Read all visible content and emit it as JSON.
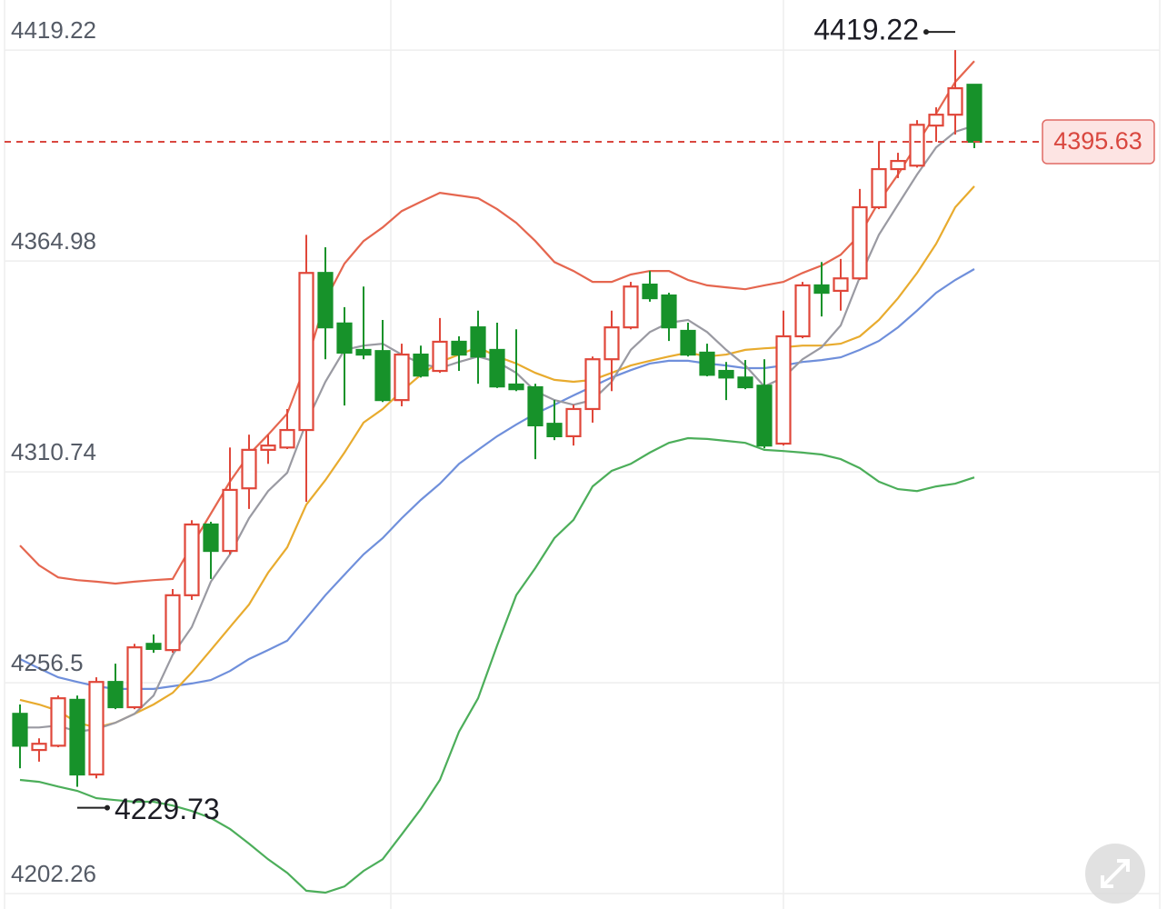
{
  "chart_data": {
    "type": "candlestick",
    "ylim": [
      4198.3,
      4432.1
    ],
    "yticks": [
      4202.26,
      4256.5,
      4310.74,
      4364.98,
      4419.22
    ],
    "grid": true,
    "up_color": "#e0473a",
    "down_color": "#17922a",
    "ohlc": {
      "open": [
        4248.5,
        4239.2,
        4240.3,
        4252.1,
        4232.9,
        4256.7,
        4250.2,
        4266.5,
        4264.9,
        4279.0,
        4297.2,
        4290.4,
        4306.5,
        4316.4,
        4317.0,
        4321.5,
        4361.9,
        4348.9,
        4342.1,
        4341.8,
        4329.2,
        4340.9,
        4336.7,
        4344.2,
        4347.9,
        4342.1,
        4333.2,
        4332.5,
        4323.1,
        4319.9,
        4326.9,
        4339.7,
        4347.9,
        4358.9,
        4356.1,
        4347.0,
        4341.4,
        4336.7,
        4335.0,
        4332.9,
        4318.0,
        4345.6,
        4358.7,
        4357.3,
        4360.5,
        4378.8,
        4388.6,
        4389.5,
        4399.8,
        4402.6,
        4410.3
      ],
      "high": [
        4250.9,
        4242.2,
        4253.2,
        4253.2,
        4257.9,
        4261.4,
        4266.5,
        4268.9,
        4280.6,
        4298.3,
        4297.9,
        4317.0,
        4320.3,
        4320.3,
        4326.9,
        4371.7,
        4368.5,
        4353.1,
        4358.4,
        4349.8,
        4343.7,
        4343.2,
        4350.3,
        4345.6,
        4352.2,
        4349.1,
        4347.4,
        4333.4,
        4329.2,
        4328.0,
        4340.4,
        4352.2,
        4359.6,
        4362.4,
        4356.8,
        4349.1,
        4343.7,
        4339.0,
        4339.5,
        4339.7,
        4352.2,
        4359.6,
        4364.7,
        4365.5,
        4383.5,
        4395.8,
        4392.8,
        4401.2,
        4404.5,
        4419.22,
        4410.3
      ],
      "low": [
        4234.5,
        4236.2,
        4239.9,
        4229.73,
        4231.9,
        4249.7,
        4249.7,
        4264.2,
        4264.2,
        4277.8,
        4283.2,
        4289.5,
        4301.2,
        4312.8,
        4316.6,
        4303.0,
        4339.7,
        4327.8,
        4339.7,
        4328.7,
        4327.6,
        4335.0,
        4336.2,
        4336.7,
        4333.4,
        4332.3,
        4331.5,
        4314.0,
        4318.9,
        4317.5,
        4323.4,
        4331.5,
        4347.4,
        4354.5,
        4344.4,
        4340.4,
        4335.3,
        4329.2,
        4332.0,
        4316.8,
        4317.5,
        4345.1,
        4350.7,
        4352.2,
        4360.1,
        4378.3,
        4386.3,
        4389.0,
        4395.6,
        4397.5,
        4394.0
      ],
      "close": [
        4240.3,
        4240.8,
        4252.5,
        4232.9,
        4256.7,
        4250.2,
        4265.6,
        4265.2,
        4279.0,
        4297.2,
        4290.4,
        4306.1,
        4316.4,
        4317.5,
        4321.5,
        4361.9,
        4347.9,
        4341.4,
        4340.9,
        4329.2,
        4340.9,
        4335.5,
        4344.2,
        4340.9,
        4340.4,
        4332.7,
        4332.0,
        4322.7,
        4319.9,
        4326.9,
        4339.7,
        4347.9,
        4358.4,
        4355.4,
        4347.9,
        4340.9,
        4335.7,
        4335.0,
        4332.5,
        4317.5,
        4345.6,
        4358.7,
        4356.8,
        4360.5,
        4378.8,
        4388.6,
        4390.7,
        4400.0,
        4402.6,
        4409.4,
        4395.63
      ]
    },
    "series": [
      {
        "color": "#e5664f",
        "values": [
          4291.8,
          4286.7,
          4283.6,
          4282.9,
          4282.5,
          4282.0,
          4282.5,
          4282.9,
          4283.2,
          4291.8,
          4300.0,
          4308.2,
          4315.2,
          4320.3,
          4325.7,
          4338.6,
          4354.9,
          4364.3,
          4370.1,
          4373.6,
          4377.8,
          4380.2,
          4382.5,
          4381.8,
          4381.1,
          4378.3,
          4374.8,
          4370.1,
          4364.7,
          4362.4,
          4359.6,
          4359.6,
          4361.5,
          4362.4,
          4362.4,
          4360.1,
          4358.7,
          4358.2,
          4357.7,
          4358.7,
          4359.6,
          4361.9,
          4363.8,
          4366.6,
          4371.7,
          4380.2,
          4387.2,
          4395.1,
          4402.9,
          4411.0,
          4416.4
        ]
      },
      {
        "color": "#4cae5a",
        "values": [
          4231.5,
          4231.0,
          4229.8,
          4228.7,
          4226.8,
          4226.3,
          4225.9,
          4225.9,
          4224.9,
          4223.5,
          4221.7,
          4218.9,
          4215.1,
          4211.1,
          4207.6,
          4203.0,
          4202.5,
          4204.1,
          4208.1,
          4211.1,
          4217.5,
          4224.0,
          4231.5,
          4243.9,
          4252.5,
          4266.1,
          4279.0,
          4286.0,
          4293.7,
          4298.4,
          4307.0,
          4311.0,
          4312.8,
          4315.7,
          4318.2,
          4319.4,
          4319.2,
          4318.7,
          4318.2,
          4316.4,
          4316.1,
          4315.7,
          4315.2,
          4314.0,
          4311.7,
          4308.2,
          4306.3,
          4305.8,
          4307.0,
          4307.7,
          4309.3
        ]
      },
      {
        "color": "#6f8fdb",
        "values": [
          4262.6,
          4260.2,
          4257.9,
          4256.7,
          4255.6,
          4254.9,
          4254.9,
          4254.9,
          4255.6,
          4256.3,
          4257.2,
          4259.5,
          4262.6,
          4264.9,
          4267.3,
          4273.1,
          4279.0,
          4284.3,
          4289.5,
          4293.7,
          4298.8,
          4303.5,
          4307.7,
          4312.8,
          4316.4,
          4319.9,
          4322.9,
          4325.7,
          4328.0,
          4330.4,
          4332.7,
          4335.0,
          4336.9,
          4338.6,
          4339.3,
          4339.3,
          4338.6,
          4338.1,
          4337.4,
          4337.4,
          4338.1,
          4339.0,
          4339.5,
          4340.2,
          4342.1,
          4344.4,
          4347.9,
          4352.2,
          4356.8,
          4360.1,
          4362.9
        ]
      },
      {
        "color": "#e8ab2e",
        "values": [
          4252.1,
          4250.9,
          4249.3,
          4246.2,
          4245.0,
          4246.2,
          4248.5,
          4250.9,
          4253.9,
          4259.1,
          4264.9,
          4270.8,
          4276.6,
          4284.8,
          4291.3,
          4302.3,
          4308.6,
          4315.7,
          4323.4,
          4326.9,
          4331.5,
          4335.7,
          4339.0,
          4340.9,
          4342.8,
          4340.4,
          4338.6,
          4336.2,
          4334.4,
          4333.9,
          4334.4,
          4336.2,
          4338.1,
          4339.3,
          4340.4,
          4341.4,
          4340.4,
          4340.9,
          4342.1,
          4342.5,
          4342.8,
          4343.2,
          4343.2,
          4343.7,
          4345.6,
          4349.8,
          4355.4,
          4361.9,
          4369.4,
          4378.8,
          4384.2
        ]
      },
      {
        "color": "#9a9aa2",
        "values": [
          4245.0,
          4245.0,
          4245.5,
          4243.9,
          4244.6,
          4246.2,
          4248.5,
          4253.2,
          4263.7,
          4270.8,
          4282.5,
          4289.5,
          4298.8,
          4305.8,
          4310.5,
          4323.4,
          4333.9,
          4342.1,
          4343.2,
          4343.7,
          4340.9,
          4338.6,
          4337.4,
          4339.0,
          4340.4,
          4339.0,
          4336.2,
          4331.5,
          4329.2,
          4328.0,
          4329.2,
          4333.9,
          4342.1,
          4346.7,
          4349.1,
          4349.8,
          4346.7,
          4342.1,
          4338.1,
          4332.7,
          4335.0,
          4339.7,
          4342.8,
          4348.4,
          4360.8,
          4371.7,
          4379.5,
          4387.2,
          4394.2,
          4398.2,
          4399.8
        ]
      }
    ]
  }
}
